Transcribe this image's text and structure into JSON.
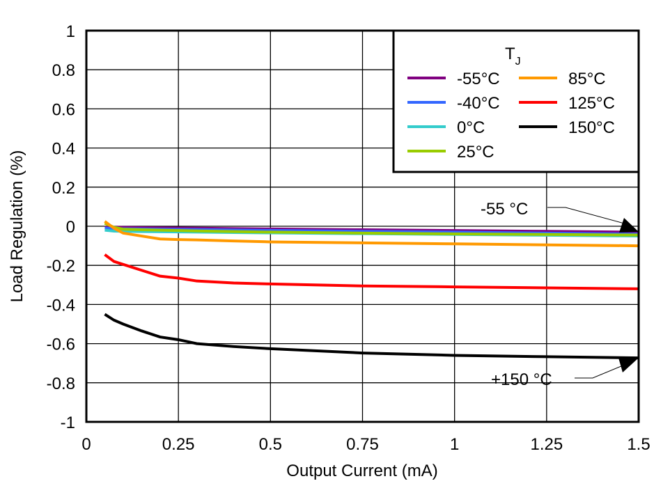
{
  "chart_data": {
    "type": "line",
    "title": "",
    "xlabel": "Output Current (mA)",
    "ylabel": "Load Regulation (%)",
    "xlim": [
      0,
      1.5
    ],
    "ylim": [
      -1,
      1
    ],
    "xticks": [
      "0",
      "0.25",
      "0.5",
      "0.75",
      "1",
      "1.25",
      "1.5"
    ],
    "yticks": [
      "1",
      "0.8",
      "0.6",
      "0.4",
      "0.2",
      "0",
      "-0.2",
      "-0.4",
      "-0.6",
      "-0.8",
      "-1"
    ],
    "grid": true,
    "legend": {
      "title": "T",
      "title_sub": "J",
      "placement": "top-right"
    },
    "annotations": [
      {
        "text": "-55 °C",
        "points_to": "-55°C"
      },
      {
        "text": "+150 °C",
        "points_to": "150°C"
      }
    ],
    "x": [
      0.05,
      0.075,
      0.1,
      0.15,
      0.2,
      0.25,
      0.3,
      0.4,
      0.5,
      0.75,
      1.0,
      1.25,
      1.5
    ],
    "series": [
      {
        "name": "-55°C",
        "color": "#800080",
        "values": [
          -0.005,
          -0.005,
          -0.006,
          -0.007,
          -0.008,
          -0.009,
          -0.01,
          -0.012,
          -0.014,
          -0.018,
          -0.022,
          -0.026,
          -0.03
        ]
      },
      {
        "name": "-40°C",
        "color": "#3366ff",
        "values": [
          -0.01,
          -0.012,
          -0.013,
          -0.014,
          -0.015,
          -0.016,
          -0.017,
          -0.019,
          -0.021,
          -0.026,
          -0.03,
          -0.035,
          -0.04
        ]
      },
      {
        "name": "0°C",
        "color": "#33cccc",
        "values": [
          -0.02,
          -0.025,
          -0.026,
          -0.027,
          -0.028,
          -0.029,
          -0.03,
          -0.032,
          -0.034,
          -0.038,
          -0.042,
          -0.046,
          -0.05
        ]
      },
      {
        "name": "25°C",
        "color": "#99cc00",
        "values": [
          0.015,
          -0.005,
          -0.015,
          -0.018,
          -0.02,
          -0.022,
          -0.024,
          -0.027,
          -0.03,
          -0.035,
          -0.039,
          -0.042,
          -0.045
        ]
      },
      {
        "name": "85°C",
        "color": "#ff9900",
        "values": [
          0.025,
          -0.01,
          -0.035,
          -0.05,
          -0.065,
          -0.068,
          -0.07,
          -0.075,
          -0.08,
          -0.085,
          -0.09,
          -0.095,
          -0.1
        ]
      },
      {
        "name": "125°C",
        "color": "#ff0000",
        "values": [
          -0.145,
          -0.18,
          -0.195,
          -0.225,
          -0.255,
          -0.265,
          -0.28,
          -0.29,
          -0.295,
          -0.305,
          -0.31,
          -0.315,
          -0.32
        ]
      },
      {
        "name": "150°C",
        "color": "#000000",
        "values": [
          -0.45,
          -0.48,
          -0.5,
          -0.535,
          -0.566,
          -0.58,
          -0.6,
          -0.615,
          -0.626,
          -0.648,
          -0.66,
          -0.667,
          -0.673
        ]
      }
    ]
  }
}
